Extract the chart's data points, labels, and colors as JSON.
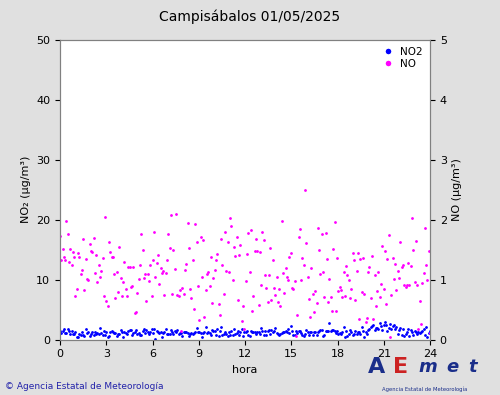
{
  "title": "Campisábalos 01/05/2025",
  "xlabel": "hora",
  "ylabel_left": "NO₂ (µg/m³)",
  "ylabel_right": "NO (µg/m³)",
  "xlim": [
    0,
    24
  ],
  "ylim_left": [
    0,
    50
  ],
  "ylim_right": [
    0,
    5
  ],
  "xticks": [
    0,
    3,
    6,
    9,
    12,
    15,
    18,
    21,
    24
  ],
  "yticks_left": [
    0,
    10,
    20,
    30,
    40,
    50
  ],
  "yticks_right": [
    0,
    1,
    2,
    3,
    4,
    5
  ],
  "no2_color": "#0000ff",
  "no_color": "#ff00ff",
  "copyright_text": "© Agencia Estatal de Meteorología",
  "background_color": "#e0e0e0",
  "plot_bg_color": "#ffffff",
  "title_fontsize": 10,
  "label_fontsize": 8,
  "tick_fontsize": 8
}
